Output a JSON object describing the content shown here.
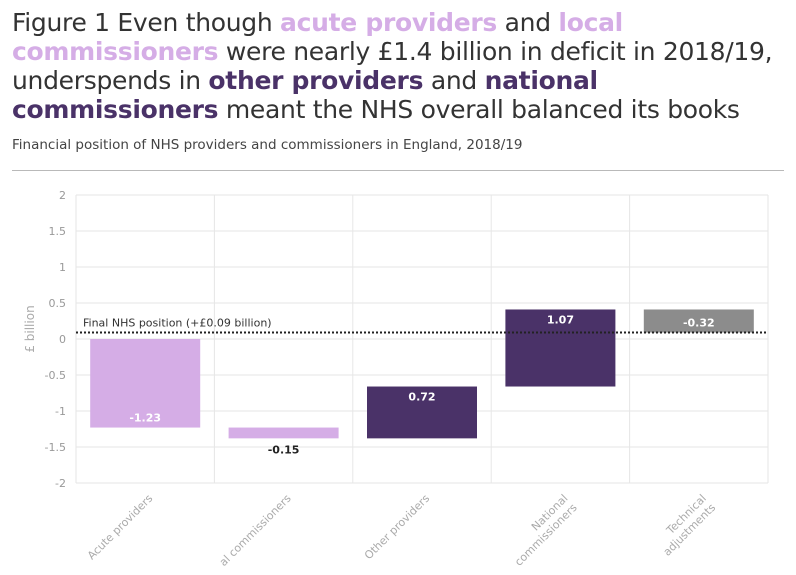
{
  "title": {
    "part1": "Figure 1 Even though ",
    "acute": "acute providers",
    "and1": " and ",
    "local": "local commissioners",
    "part2": " were nearly £1.4 billion in deficit in 2018/19, underspends in ",
    "other": "other providers",
    "and2": " and ",
    "national": "national commissioners",
    "part3": " meant the NHS overall balanced its books"
  },
  "subtitle": "Financial position of NHS providers and commissioners in England, 2018/19",
  "colors": {
    "light_purple": "#d5ade6",
    "dark_purple": "#4a3268",
    "grey": "#8c8c8c",
    "final_line": "#222222",
    "grid": "#e6e6e6"
  },
  "chart_data": {
    "type": "bar",
    "subtype": "waterfall",
    "ylabel": "£ billion",
    "ylim": [
      -2,
      2
    ],
    "yticks": [
      2,
      1.5,
      1,
      0.5,
      0,
      -0.5,
      -1,
      -1.5,
      -2
    ],
    "ytick_labels": [
      "2",
      "1.5",
      "1",
      "0.5",
      "0",
      "-0.5",
      "-1",
      "-1.5",
      "-2"
    ],
    "categories": [
      "Acute providers",
      "Local commissioners",
      "Other providers",
      "National commissioners",
      "Technical adjustments"
    ],
    "category_labels_visible": [
      "Acute providers",
      "al commissioners",
      "Other providers",
      "National commissioners",
      "Technical adjustments"
    ],
    "bars": [
      {
        "start": 0,
        "end": -1.23,
        "label": "-1.23",
        "color": "#d5ade6"
      },
      {
        "start": -1.23,
        "end": -1.38,
        "label": "-0.15",
        "color": "#d5ade6"
      },
      {
        "start": -1.38,
        "end": -0.66,
        "label": "0.72",
        "color": "#4a3268"
      },
      {
        "start": -0.66,
        "end": 0.41,
        "label": "1.07",
        "color": "#4a3268"
      },
      {
        "start": 0.41,
        "end": 0.09,
        "label": "-0.32",
        "color": "#8c8c8c"
      }
    ],
    "reference_line": {
      "value": 0.09,
      "label": "Final NHS position (+£0.09 billion)",
      "style": "dotted"
    },
    "grid": true
  }
}
